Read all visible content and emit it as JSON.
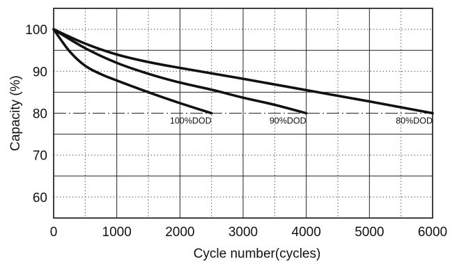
{
  "chart_data": {
    "type": "line",
    "xlabel": "Cycle number(cycles)",
    "ylabel": "Capacity (%)",
    "xlim": [
      0,
      6000
    ],
    "ylim": [
      55,
      105
    ],
    "x_ticks": [
      "0",
      "1000",
      "2000",
      "3000",
      "4000",
      "5000",
      "6000"
    ],
    "y_ticks": [
      "60",
      "70",
      "80",
      "90",
      "100"
    ],
    "grid": "solid major lines with dotted minor lines",
    "reference_line": {
      "y": 80,
      "style": "dash-dot"
    },
    "series": [
      {
        "name": "100%DOD",
        "x": [
          0,
          250,
          500,
          750,
          1000,
          1500,
          2000,
          2500
        ],
        "y": [
          100,
          94.8,
          91.3,
          89.3,
          87.8,
          85.0,
          82.4,
          80
        ]
      },
      {
        "name": "90%DOD",
        "x": [
          0,
          500,
          1000,
          1500,
          2000,
          2500,
          3000,
          3500,
          4000
        ],
        "y": [
          100,
          95.5,
          92.0,
          89.4,
          87.3,
          85.6,
          83.7,
          82.0,
          80
        ]
      },
      {
        "name": "80%DOD",
        "x": [
          0,
          500,
          1000,
          1500,
          2000,
          3000,
          4000,
          5000,
          6000
        ],
        "y": [
          100,
          96.6,
          94.0,
          92.2,
          90.8,
          88.2,
          85.5,
          82.8,
          80
        ]
      }
    ]
  }
}
